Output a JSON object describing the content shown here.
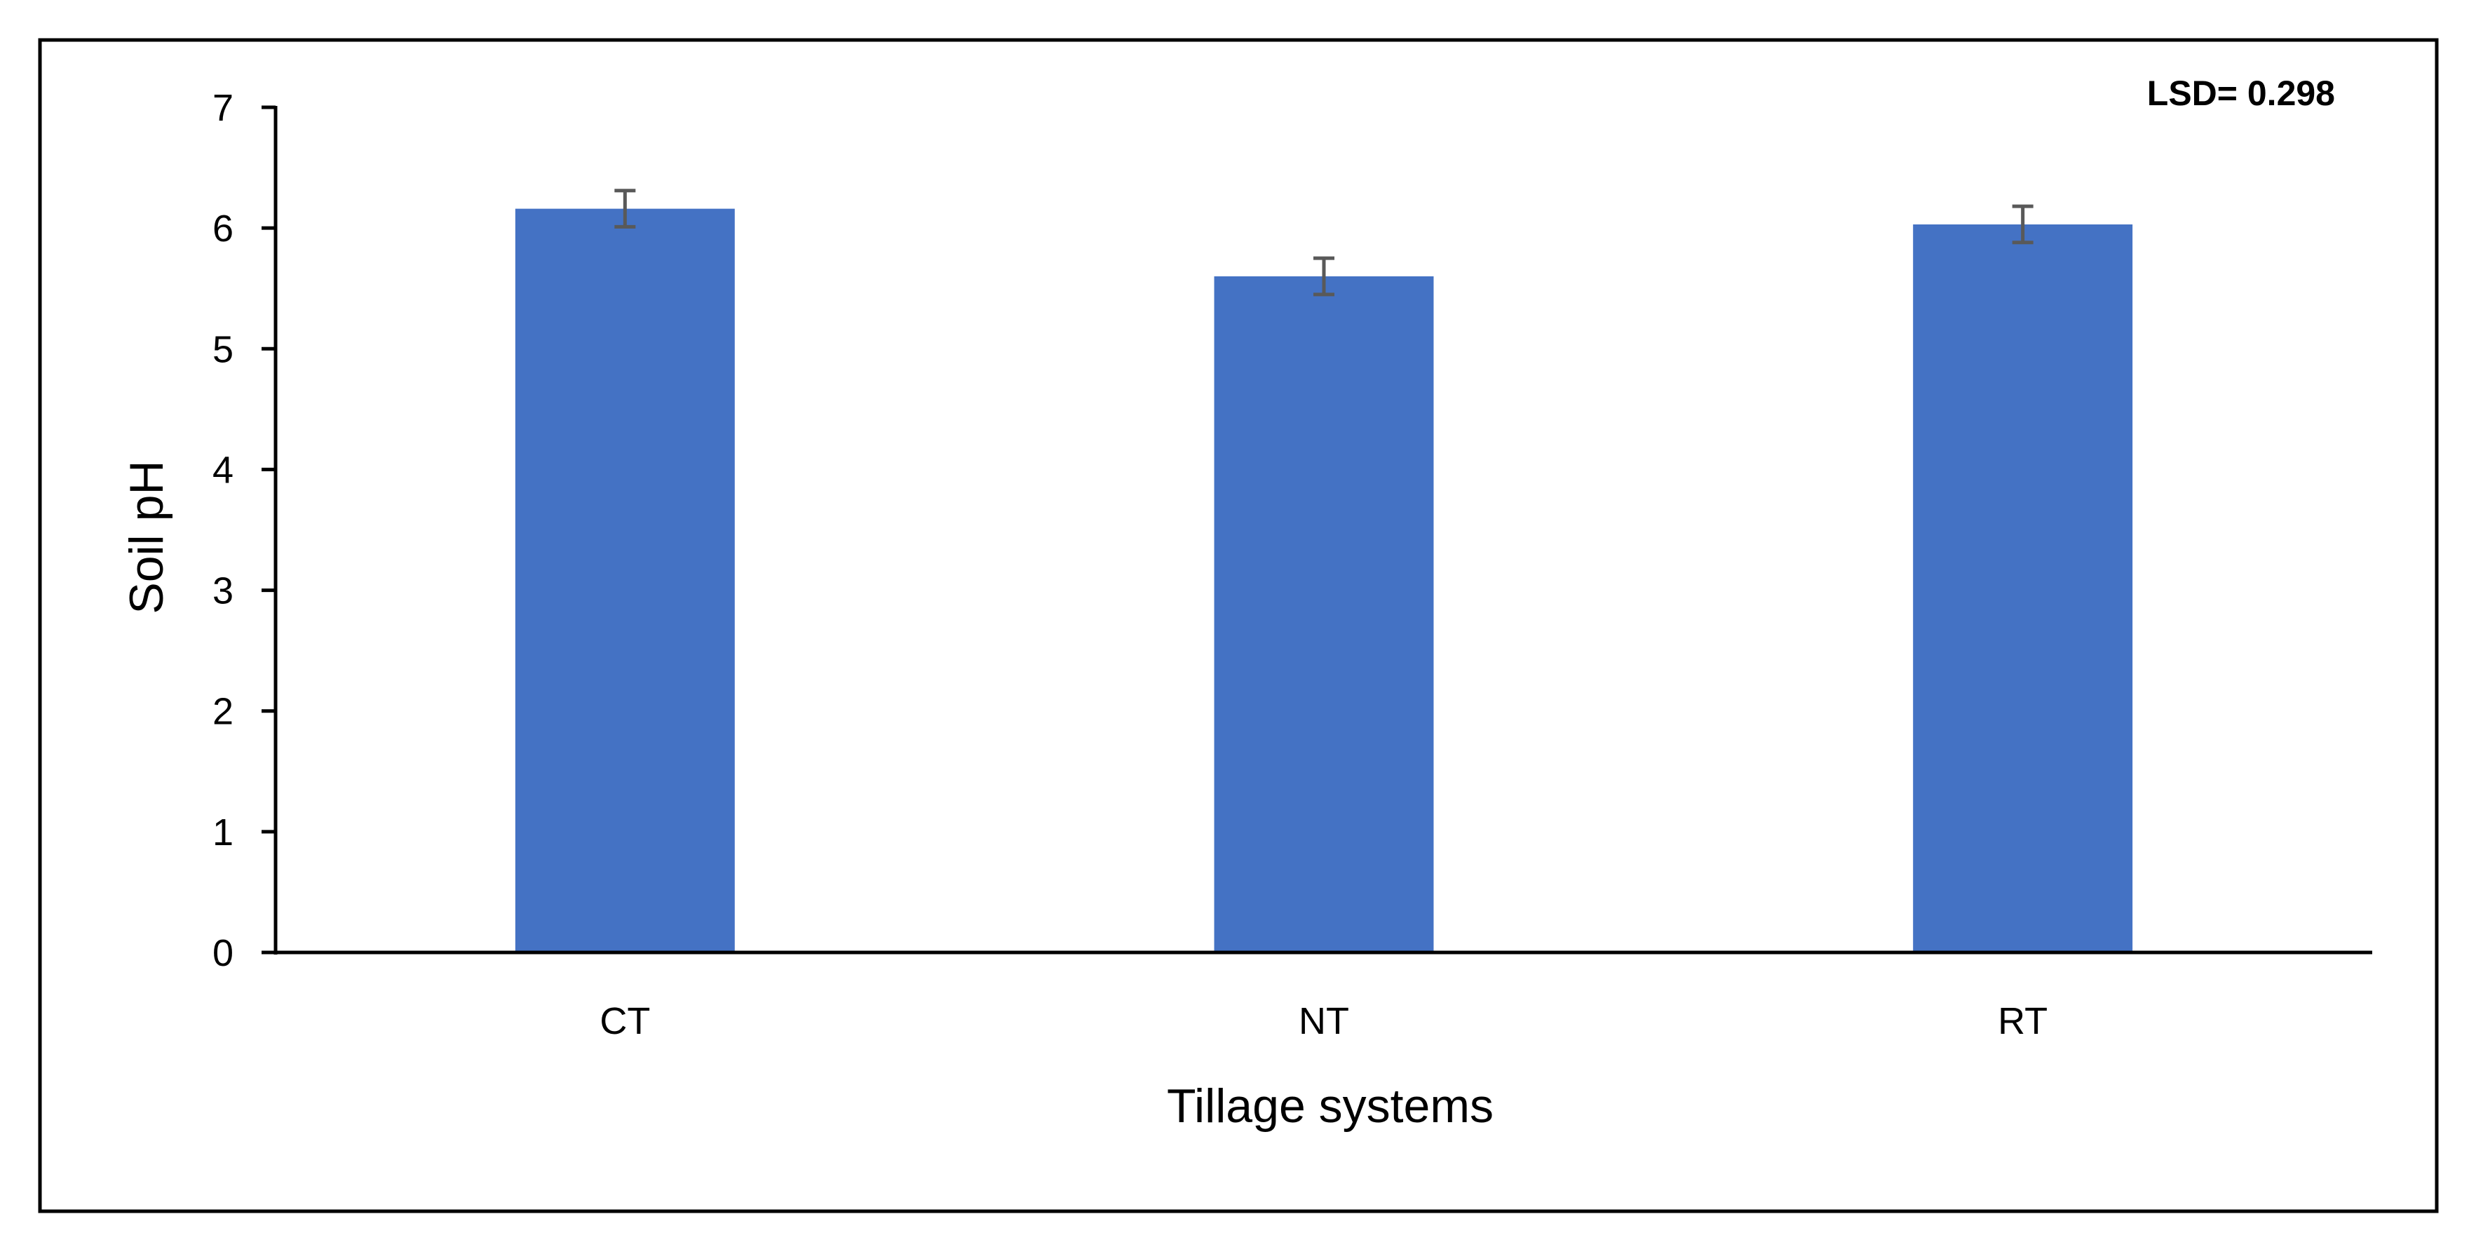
{
  "chart_data": {
    "type": "bar",
    "title": "",
    "xlabel": "Tillage systems",
    "ylabel": "Soil pH",
    "categories": [
      "CT",
      "NT",
      "RT"
    ],
    "values": [
      6.16,
      5.6,
      6.03
    ],
    "errors": [
      0.15,
      0.15,
      0.15
    ],
    "ylim": [
      0,
      7
    ],
    "yticks": [
      0,
      1,
      2,
      3,
      4,
      5,
      6,
      7
    ],
    "grid": false,
    "legend": "none",
    "annotation": "LSD= 0.298",
    "colors": {
      "bar": "#4472C4",
      "error_bar": "#595959",
      "axis": "#000000",
      "frame": "#000000"
    }
  }
}
